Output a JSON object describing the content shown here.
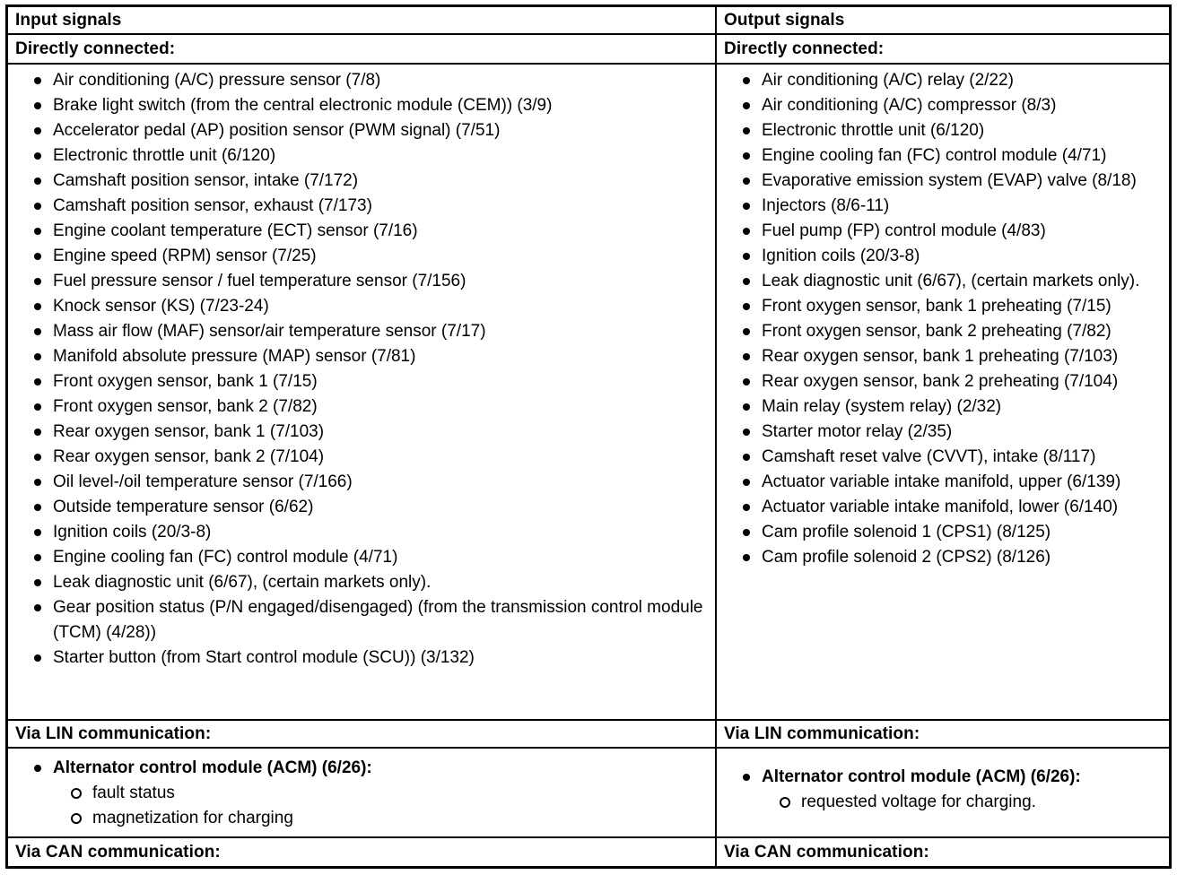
{
  "colors": {
    "text": "#000000",
    "background": "#ffffff",
    "border": "#000000"
  },
  "icons": {
    "bullet": "filled-circle-bullet",
    "sub_bullet": "open-circle-bullet"
  },
  "table": {
    "columns": [
      {
        "header": "Input signals",
        "sections": [
          {
            "heading": "Directly connected:",
            "items": [
              {
                "text": "Air conditioning (A/C) pressure sensor (7/8)"
              },
              {
                "text": "Brake light switch (from the central electronic module (CEM)) (3/9)"
              },
              {
                "text": "Accelerator pedal (AP) position sensor (PWM signal) (7/51)"
              },
              {
                "text": "Electronic throttle unit (6/120)"
              },
              {
                "text": "Camshaft position sensor, intake (7/172)"
              },
              {
                "text": "Camshaft position sensor, exhaust (7/173)"
              },
              {
                "text": "Engine coolant temperature (ECT) sensor (7/16)"
              },
              {
                "text": "Engine speed (RPM) sensor (7/25)"
              },
              {
                "text": "Fuel pressure sensor / fuel temperature sensor (7/156)"
              },
              {
                "text": "Knock sensor (KS) (7/23-24)"
              },
              {
                "text": "Mass air flow (MAF) sensor/air temperature sensor (7/17)"
              },
              {
                "text": "Manifold absolute pressure (MAP) sensor (7/81)"
              },
              {
                "text": "Front oxygen sensor, bank 1 (7/15)"
              },
              {
                "text": "Front oxygen sensor, bank 2 (7/82)"
              },
              {
                "text": "Rear oxygen sensor, bank 1 (7/103)"
              },
              {
                "text": "Rear oxygen sensor, bank 2 (7/104)"
              },
              {
                "text": "Oil level-/oil temperature sensor (7/166)"
              },
              {
                "text": "Outside temperature sensor (6/62)"
              },
              {
                "text": "Ignition coils (20/3-8)"
              },
              {
                "text": "Engine cooling fan (FC) control module (4/71)"
              },
              {
                "text": "Leak diagnostic unit (6/67), (certain markets only)."
              },
              {
                "text": "Gear position status (P/N engaged/disengaged) (from the transmission control module (TCM) (4/28))"
              },
              {
                "text": "Starter button (from Start control module (SCU)) (3/132)"
              }
            ]
          },
          {
            "heading": "Via LIN communication:",
            "items": [
              {
                "text": "Alternator control module (ACM) (6/26):",
                "bold": true,
                "subitems": [
                  "fault status",
                  "magnetization for charging"
                ]
              }
            ]
          },
          {
            "heading": "Via CAN communication:",
            "items": []
          }
        ]
      },
      {
        "header": "Output signals",
        "sections": [
          {
            "heading": "Directly connected:",
            "items": [
              {
                "text": "Air conditioning (A/C) relay (2/22)"
              },
              {
                "text": "Air conditioning (A/C) compressor (8/3)"
              },
              {
                "text": "Electronic throttle unit (6/120)"
              },
              {
                "text": "Engine cooling fan (FC) control module (4/71)"
              },
              {
                "text": "Evaporative emission system (EVAP) valve (8/18)"
              },
              {
                "text": "Injectors (8/6-11)"
              },
              {
                "text": "Fuel pump (FP) control module (4/83)"
              },
              {
                "text": "Ignition coils (20/3-8)"
              },
              {
                "text": "Leak diagnostic unit (6/67), (certain markets only)."
              },
              {
                "text": "Front oxygen sensor, bank 1 preheating (7/15)"
              },
              {
                "text": "Front oxygen sensor, bank 2 preheating (7/82)"
              },
              {
                "text": "Rear oxygen sensor, bank 1 preheating (7/103)"
              },
              {
                "text": "Rear oxygen sensor, bank 2 preheating (7/104)"
              },
              {
                "text": "Main relay (system relay) (2/32)"
              },
              {
                "text": "Starter motor relay (2/35)"
              },
              {
                "text": "Camshaft reset valve (CVVT), intake (8/117)"
              },
              {
                "text": "Actuator variable intake manifold, upper (6/139)"
              },
              {
                "text": "Actuator variable intake manifold, lower (6/140)"
              },
              {
                "text": "Cam profile solenoid 1 (CPS1) (8/125)"
              },
              {
                "text": "Cam profile solenoid 2 (CPS2) (8/126)"
              }
            ]
          },
          {
            "heading": "Via LIN communication:",
            "items": [
              {
                "text": "Alternator control module (ACM) (6/26):",
                "bold": true,
                "subitems": [
                  "requested voltage for charging."
                ]
              }
            ]
          },
          {
            "heading": "Via CAN communication:",
            "items": []
          }
        ]
      }
    ]
  }
}
